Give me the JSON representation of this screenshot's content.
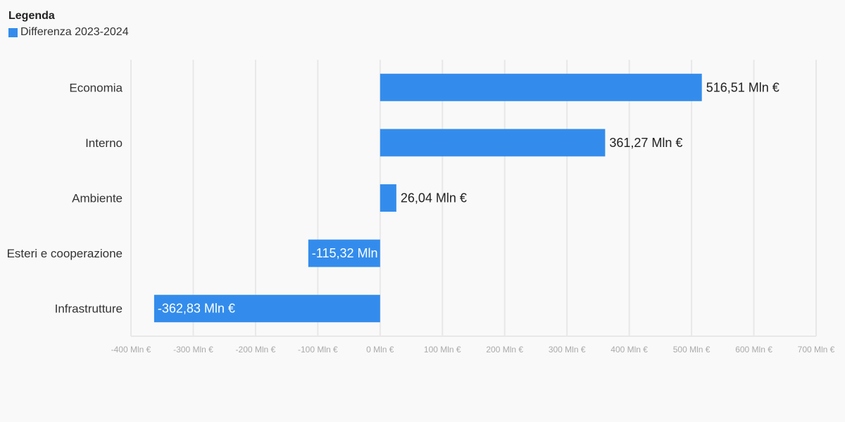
{
  "legend": {
    "title": "Legenda",
    "items": [
      {
        "label": "Differenza 2023-2024",
        "color": "#338cec"
      }
    ]
  },
  "chart_data": {
    "type": "bar",
    "orientation": "horizontal",
    "categories": [
      "Economia",
      "Interno",
      "Ambiente",
      "Esteri e cooperazione",
      "Infrastrutture"
    ],
    "series": [
      {
        "name": "Differenza 2023-2024",
        "values": [
          516.51,
          361.27,
          26.04,
          -115.32,
          -362.83
        ],
        "color": "#338cec"
      }
    ],
    "value_labels": [
      "516,51 Mln €",
      "361,27 Mln €",
      "26,04 Mln €",
      "-115,32 Mln",
      "-362,83 Mln €"
    ],
    "xlim": [
      -400,
      700
    ],
    "xticks": [
      -400,
      -300,
      -200,
      -100,
      0,
      100,
      200,
      300,
      400,
      500,
      600,
      700
    ],
    "xtick_labels": [
      "-400 Mln €",
      "-300 Mln €",
      "-200 Mln €",
      "-100 Mln €",
      "0 Mln €",
      "100 Mln €",
      "200 Mln €",
      "300 Mln €",
      "400 Mln €",
      "500 Mln €",
      "600 Mln €",
      "700 Mln €"
    ],
    "grid": true,
    "legend_position": "top-left"
  }
}
